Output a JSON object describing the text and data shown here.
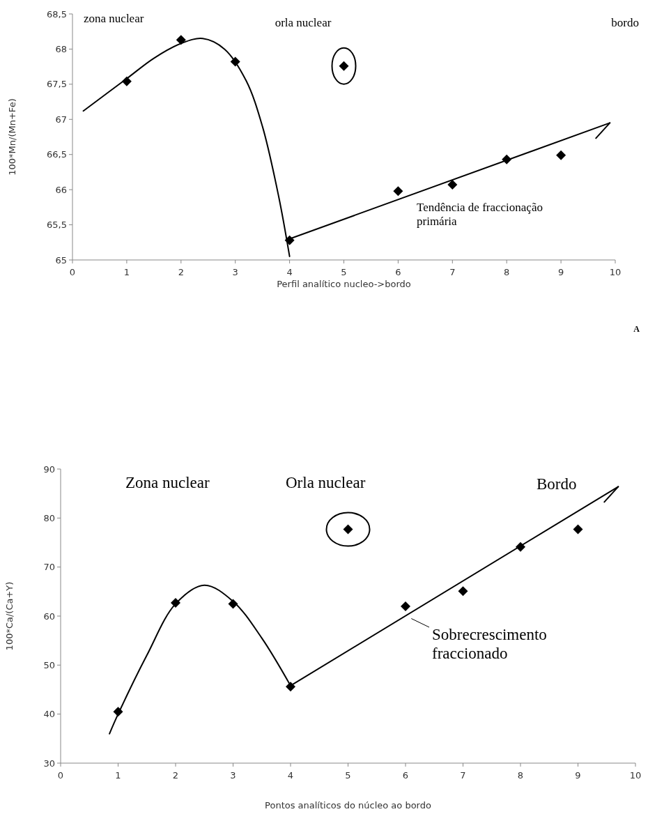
{
  "chart_data": [
    {
      "type": "scatter",
      "xlabel": "Perfil analítico nucleo->bordo",
      "ylabel": "100*Mn/(Mn+Fe)",
      "xlim": [
        0,
        10
      ],
      "xticks": [
        0,
        1,
        2,
        3,
        4,
        5,
        6,
        7,
        8,
        9,
        10
      ],
      "ylim": [
        65,
        68.5
      ],
      "yticks": [
        65,
        {
          "value": 65.5,
          "label": "65,5"
        },
        66,
        {
          "value": 66.5,
          "label": "66,5"
        },
        67,
        {
          "value": 67.5,
          "label": "67,5"
        },
        68,
        {
          "value": 68.5,
          "label": "68,5"
        }
      ],
      "grid": false,
      "series": [
        {
          "marker": "diamond",
          "color": "#000000",
          "x": [
            1,
            2,
            3,
            4,
            5,
            6,
            7,
            8,
            9
          ],
          "values": [
            67.54,
            68.13,
            67.82,
            65.28,
            67.76,
            65.98,
            66.07,
            66.43,
            66.49
          ]
        },
        {
          "type": "line",
          "marker": "none",
          "color": "#000000",
          "x": [
            0.2,
            1,
            1.5,
            2,
            2.4,
            2.8,
            3.2,
            3.5,
            3.8,
            4
          ],
          "values": [
            67.12,
            67.58,
            67.87,
            68.08,
            68.15,
            68.0,
            67.55,
            66.9,
            65.9,
            65.05
          ]
        },
        {
          "type": "line",
          "marker": "none",
          "color": "#000000",
          "x": [
            4,
            9.9
          ],
          "values": [
            65.3,
            66.95
          ]
        }
      ],
      "annotations": [
        "zona nuclear",
        "orla nuclear",
        "bordo",
        "Tendência de fraccionação primária",
        "A"
      ]
    },
    {
      "type": "scatter",
      "xlabel": "Pontos analíticos do núcleo ao bordo",
      "ylabel": "100*Ca/(Ca+Y)",
      "xlim": [
        0,
        10
      ],
      "xticks": [
        0,
        1,
        2,
        3,
        4,
        5,
        6,
        7,
        8,
        9,
        10
      ],
      "ylim": [
        30,
        90
      ],
      "yticks": [
        30,
        40,
        50,
        60,
        70,
        80,
        90
      ],
      "grid": false,
      "series": [
        {
          "marker": "diamond",
          "color": "#000000",
          "x": [
            1,
            2,
            3,
            4,
            5,
            6,
            7,
            8,
            9
          ],
          "values": [
            40.5,
            62.7,
            62.5,
            45.6,
            77.7,
            62.0,
            65.1,
            74.1,
            77.7
          ]
        },
        {
          "type": "line",
          "marker": "none",
          "color": "#000000",
          "x": [
            0.85,
            1,
            1.5,
            2,
            2.5,
            3,
            3.5,
            4
          ],
          "values": [
            36,
            40,
            52,
            62.5,
            66.3,
            63,
            55.5,
            45.8
          ]
        },
        {
          "type": "line",
          "marker": "none",
          "color": "#000000",
          "x": [
            4,
            9.7
          ],
          "values": [
            45.8,
            86.4
          ]
        }
      ],
      "annotations": [
        "Zona nuclear",
        "Orla nuclear",
        "Bordo",
        "Sobrecrescimento fraccionado"
      ]
    }
  ]
}
